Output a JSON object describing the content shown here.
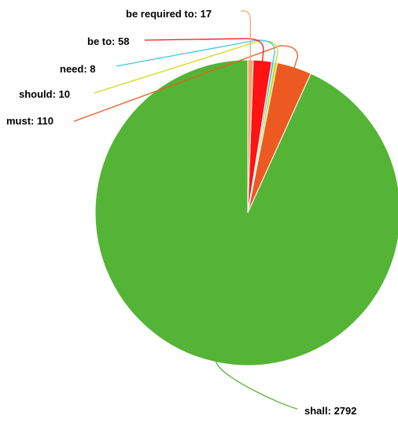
{
  "chart_data": {
    "type": "pie",
    "title": "",
    "slices": [
      {
        "label": "shall",
        "value": 2792,
        "color": "#54b435"
      },
      {
        "label": "must",
        "value": 110,
        "color": "#ec5a22"
      },
      {
        "label": "should",
        "value": 10,
        "color": "#d4d81c"
      },
      {
        "label": "need",
        "value": 8,
        "color": "#3fc6e6"
      },
      {
        "label": "be to",
        "value": 58,
        "color": "#ff1313"
      },
      {
        "label": "be required to",
        "value": 17,
        "color": "#f7a66b"
      }
    ],
    "data_labels": [
      "shall: 2792",
      "must: 110",
      "should: 10",
      "need: 8",
      "be to: 58",
      "be required to: 17"
    ],
    "legend": "none",
    "start": "12 o'clock",
    "direction": "counterclockwise"
  }
}
